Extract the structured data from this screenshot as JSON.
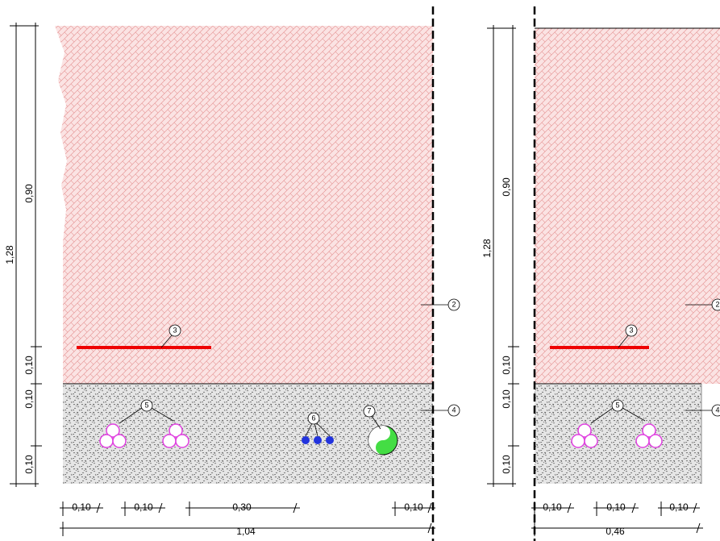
{
  "left": {
    "vertical_dims": [
      "1,28",
      "0,90",
      "0,10",
      "0,10",
      "0,10"
    ],
    "callouts": [
      "2",
      "3",
      "4",
      "5",
      "6",
      "7"
    ],
    "horizontal_dims": [
      "0,10",
      "0,10",
      "0,30",
      "0,10",
      "1,04"
    ]
  },
  "right": {
    "vertical_dims": [
      "1,28",
      "0,90",
      "0,10",
      "0,10",
      "0,10"
    ],
    "callouts": [
      "2",
      "3",
      "4",
      "5"
    ],
    "horizontal_dims": [
      "0,10",
      "0,10",
      "0,10",
      "0,46"
    ]
  }
}
